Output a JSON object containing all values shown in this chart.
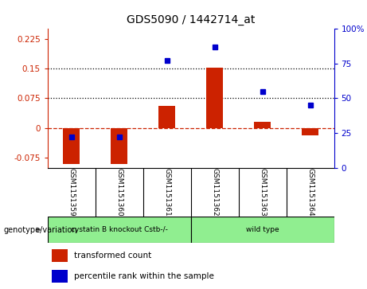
{
  "title": "GDS5090 / 1442714_at",
  "samples": [
    "GSM1151359",
    "GSM1151360",
    "GSM1151361",
    "GSM1151362",
    "GSM1151363",
    "GSM1151364"
  ],
  "transformed_count": [
    -0.09,
    -0.09,
    0.055,
    0.152,
    0.015,
    -0.018
  ],
  "percentile_rank": [
    22,
    22,
    77,
    87,
    55,
    45
  ],
  "ylim_left": [
    -0.1,
    0.25
  ],
  "ylim_right": [
    0,
    100
  ],
  "yticks_left": [
    -0.075,
    0,
    0.075,
    0.15,
    0.225
  ],
  "yticks_right": [
    0,
    25,
    50,
    75,
    100
  ],
  "ytick_labels_left": [
    "-0.075",
    "0",
    "0.075",
    "0.15",
    "0.225"
  ],
  "ytick_labels_right": [
    "0",
    "25",
    "50",
    "75",
    "100%"
  ],
  "hlines": [
    0.075,
    0.15
  ],
  "group1_label": "cystatin B knockout Cstb-/-",
  "group2_label": "wild type",
  "group1_indices": [
    0,
    1,
    2
  ],
  "group2_indices": [
    3,
    4,
    5
  ],
  "group1_color": "#90EE90",
  "group2_color": "#90EE90",
  "bar_color": "#CC2200",
  "dot_color": "#0000CC",
  "legend_label_bar": "transformed count",
  "legend_label_dot": "percentile rank within the sample",
  "genotype_label": "genotype/variation",
  "bar_width": 0.35,
  "zero_line_color": "#CC2200",
  "zero_line_style": "--",
  "hline_color": "#000000",
  "hline_style": ":",
  "bg_color": "#FFFFFF",
  "label_bg_color": "#D3D3D3"
}
